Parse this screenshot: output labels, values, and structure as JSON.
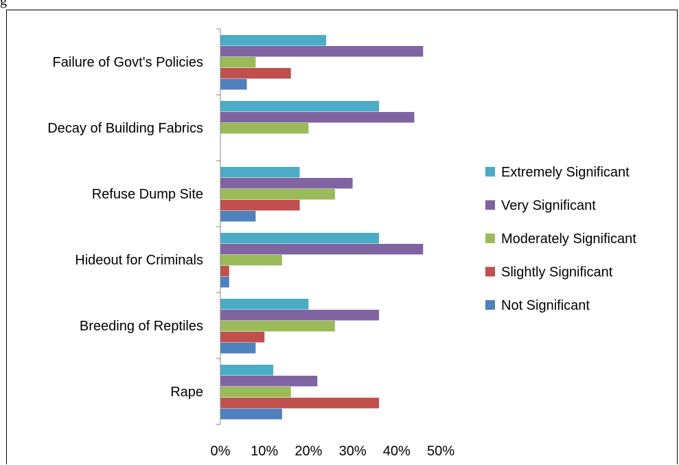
{
  "page": {
    "top_text": "g"
  },
  "chart_data": {
    "type": "bar",
    "orientation": "horizontal",
    "categories": [
      "Failure of Govt's Policies",
      "Decay of Building Fabrics",
      "Refuse Dump Site",
      "Hideout for Criminals",
      "Breeding of Reptiles",
      "Rape"
    ],
    "series": [
      {
        "name": "Extremely Significant",
        "color": "#4bacc6",
        "values": [
          24,
          36,
          18,
          36,
          20,
          12
        ]
      },
      {
        "name": "Very Significant",
        "color": "#8064a2",
        "values": [
          46,
          44,
          30,
          46,
          36,
          22
        ]
      },
      {
        "name": "Moderately Significant",
        "color": "#9bbb59",
        "values": [
          8,
          20,
          26,
          14,
          26,
          16
        ]
      },
      {
        "name": "Slightly Significant",
        "color": "#c0504d",
        "values": [
          16,
          0,
          18,
          2,
          10,
          36
        ]
      },
      {
        "name": "Not Significant",
        "color": "#4f81bd",
        "values": [
          6,
          0,
          8,
          2,
          8,
          14
        ]
      }
    ],
    "xlim": [
      0,
      50
    ],
    "xticks": [
      "0%",
      "10%",
      "20%",
      "30%",
      "40%",
      "50%"
    ],
    "legend_position": "right",
    "grid": false
  }
}
